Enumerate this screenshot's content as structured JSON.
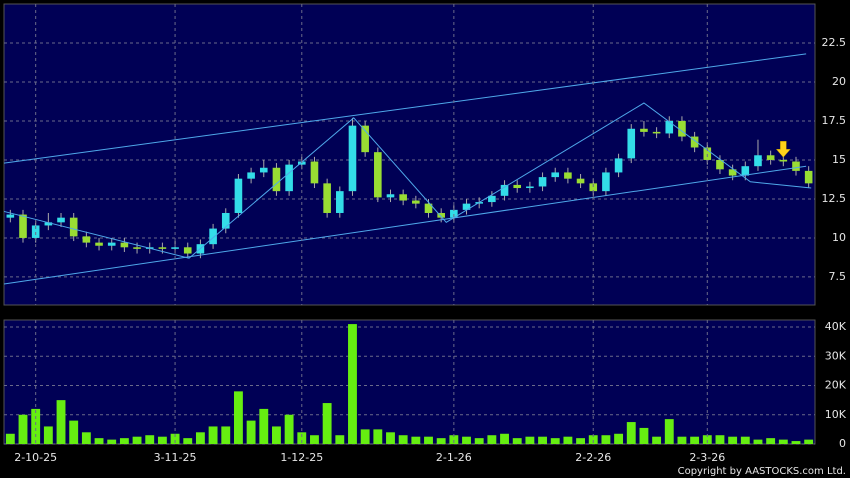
{
  "chart_data": [
    {
      "type": "candlestick",
      "open": [
        11.3,
        11.5,
        10.0,
        10.8,
        11.0,
        11.3,
        10.1,
        9.7,
        9.5,
        9.7,
        9.4,
        9.3,
        9.4,
        9.3,
        9.4,
        9.0,
        9.6,
        10.6,
        11.6,
        13.8,
        14.2,
        14.5,
        13.0,
        14.7,
        14.9,
        13.5,
        11.6,
        13.0,
        17.2,
        15.5,
        12.6,
        12.8,
        12.4,
        12.2,
        11.6,
        11.3,
        11.8,
        12.2,
        12.3,
        12.7,
        13.4,
        13.2,
        13.3,
        13.9,
        14.2,
        13.8,
        13.5,
        13.0,
        14.2,
        15.1,
        17.0,
        16.8,
        16.7,
        17.5,
        16.5,
        15.8,
        15.0,
        14.4,
        14.0,
        14.6,
        15.3,
        15.0,
        14.9,
        14.3
      ],
      "high": [
        11.8,
        11.8,
        11.1,
        11.6,
        11.6,
        11.6,
        10.4,
        10.0,
        10.0,
        10.0,
        9.7,
        9.7,
        9.7,
        9.8,
        9.7,
        9.9,
        10.9,
        11.9,
        14.1,
        14.5,
        15.0,
        14.8,
        15.0,
        15.2,
        15.2,
        13.8,
        13.3,
        17.7,
        17.5,
        15.8,
        13.1,
        13.1,
        12.7,
        12.5,
        11.9,
        12.1,
        12.5,
        12.6,
        13.0,
        13.7,
        13.7,
        13.6,
        14.2,
        14.5,
        14.5,
        14.1,
        13.8,
        14.5,
        15.4,
        17.3,
        17.5,
        17.1,
        17.8,
        17.8,
        16.8,
        16.1,
        15.3,
        14.7,
        14.9,
        16.3,
        15.6,
        15.3,
        15.2,
        14.6
      ],
      "low": [
        11.0,
        9.7,
        9.7,
        10.5,
        10.7,
        9.8,
        9.4,
        9.2,
        9.2,
        9.1,
        9.0,
        9.0,
        9.0,
        9.0,
        8.7,
        8.7,
        9.3,
        10.3,
        11.3,
        13.5,
        13.9,
        12.7,
        12.7,
        14.4,
        13.2,
        11.3,
        11.3,
        12.7,
        15.2,
        12.3,
        12.3,
        12.1,
        11.9,
        11.3,
        11.0,
        11.0,
        11.5,
        11.9,
        12.0,
        12.4,
        12.9,
        12.9,
        13.0,
        13.6,
        13.5,
        13.2,
        12.7,
        12.7,
        13.9,
        14.8,
        16.5,
        16.4,
        16.4,
        16.2,
        15.5,
        14.7,
        14.1,
        13.7,
        13.7,
        14.3,
        14.7,
        14.6,
        14.0,
        13.2
      ],
      "close": [
        11.5,
        10.0,
        10.8,
        11.0,
        11.3,
        10.1,
        9.7,
        9.5,
        9.7,
        9.4,
        9.3,
        9.4,
        9.3,
        9.4,
        9.0,
        9.6,
        10.6,
        11.6,
        13.8,
        14.2,
        14.5,
        13.0,
        14.7,
        14.9,
        13.5,
        11.6,
        13.0,
        17.2,
        15.5,
        12.6,
        12.8,
        12.4,
        12.2,
        11.6,
        11.3,
        11.8,
        12.2,
        12.3,
        12.7,
        13.4,
        13.2,
        13.3,
        13.9,
        14.2,
        13.8,
        13.5,
        13.0,
        14.2,
        15.1,
        17.0,
        16.8,
        16.7,
        17.5,
        16.5,
        15.8,
        15.0,
        14.4,
        14.0,
        14.6,
        15.3,
        15.0,
        14.9,
        14.3,
        13.5
      ],
      "up_color": "#33dde8",
      "down_color": "#99dd33",
      "ylim": [
        5.7,
        25
      ],
      "yticks": [
        7.5,
        10,
        12.5,
        15,
        17.5,
        20,
        22.5
      ],
      "grid": true,
      "lines": [
        {
          "color": "#4fa8ea",
          "x": [
            -0.5,
            62.8
          ],
          "y": [
            14.8,
            21.8
          ]
        },
        {
          "color": "#4fa8ea",
          "x": [
            -0.5,
            62.8
          ],
          "y": [
            7.05,
            14.6
          ]
        },
        {
          "color": "#4fa8ea",
          "x": [
            -0.5,
            14.1,
            27.1,
            34.4,
            50.0,
            58.4,
            63.2
          ],
          "y": [
            11.7,
            8.7,
            17.7,
            11.0,
            18.65,
            13.6,
            13.2
          ]
        }
      ]
    },
    {
      "type": "bar",
      "categories": [
        null,
        null,
        "2-10-25",
        null,
        null,
        null,
        null,
        null,
        null,
        null,
        null,
        null,
        null,
        "3-11-25",
        null,
        null,
        null,
        null,
        null,
        null,
        null,
        null,
        null,
        "1-12-25",
        null,
        null,
        null,
        null,
        null,
        null,
        null,
        null,
        null,
        null,
        null,
        "2-1-26",
        null,
        null,
        null,
        null,
        null,
        null,
        null,
        null,
        null,
        null,
        "2-2-26",
        null,
        null,
        null,
        null,
        null,
        null,
        null,
        null,
        "2-3-26",
        null,
        null,
        null,
        null,
        null,
        null,
        null,
        null
      ],
      "values": [
        3500,
        10000,
        12000,
        6000,
        15000,
        8000,
        4000,
        2000,
        1500,
        2000,
        2500,
        3000,
        2500,
        3500,
        2000,
        4000,
        6000,
        6000,
        18000,
        8000,
        12000,
        6000,
        10000,
        4000,
        3000,
        14000,
        3000,
        41000,
        5000,
        5000,
        4000,
        3000,
        2500,
        2500,
        2000,
        3000,
        2500,
        2000,
        3000,
        3500,
        2000,
        2500,
        2500,
        2000,
        2500,
        2000,
        3000,
        3000,
        3500,
        7500,
        5500,
        2500,
        8500,
        2500,
        2500,
        3000,
        3000,
        2500,
        2500,
        1500,
        2000,
        1500,
        1000,
        1500
      ],
      "color": "#66ee11",
      "ylim": [
        0,
        42400
      ],
      "yticks": [
        0,
        {
          "value": 10000,
          "label": "10K"
        },
        {
          "value": 20000,
          "label": "20K"
        },
        {
          "value": 30000,
          "label": "30K"
        },
        {
          "value": 40000,
          "label": "40K"
        }
      ],
      "grid": true
    }
  ],
  "footer": "Copyright by AASTOCKS.com Ltd."
}
